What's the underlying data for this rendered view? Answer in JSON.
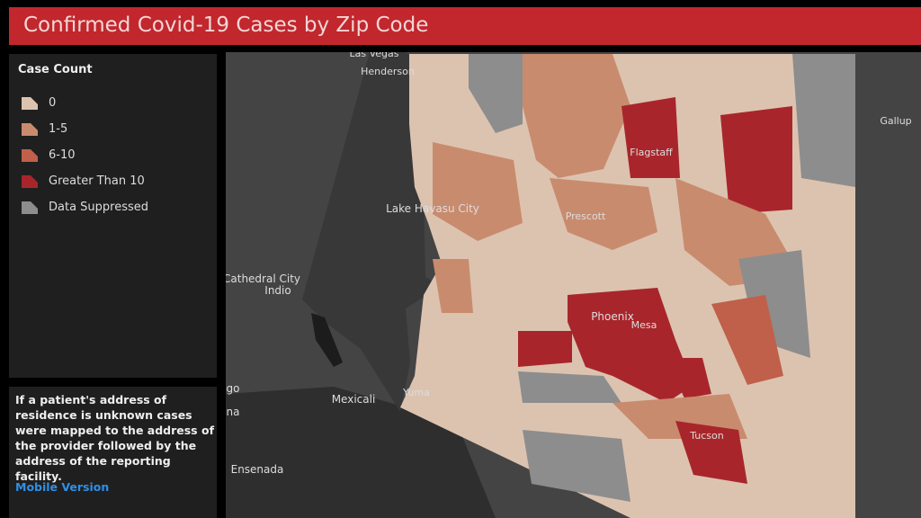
{
  "header": {
    "title": "Confirmed Covid-19 Cases by Zip Code"
  },
  "legend": {
    "title": "Case Count",
    "items": [
      {
        "label": "0",
        "color": "#dcc3b0"
      },
      {
        "label": "1-5",
        "color": "#c98b6e"
      },
      {
        "label": "6-10",
        "color": "#c0604a"
      },
      {
        "label": "Greater Than 10",
        "color": "#a8262b"
      },
      {
        "label": "Data Suppressed",
        "color": "#8d8d8d"
      }
    ]
  },
  "note": {
    "text": "If a patient's address of residence is unknown cases were mapped to the address of the provider followed by the address of the reporting facility.",
    "link": "Mobile Version"
  },
  "map": {
    "labels": [
      "Las Vegas",
      "Henderson",
      "Gallup",
      "Flagstaff",
      "Lake Havasu City",
      "Prescott",
      "Cathedral City",
      "Indio",
      "Phoenix",
      "Mesa",
      "Mexicali",
      "Yuma",
      "Tucson",
      "Ensenada",
      "go",
      "na"
    ]
  }
}
